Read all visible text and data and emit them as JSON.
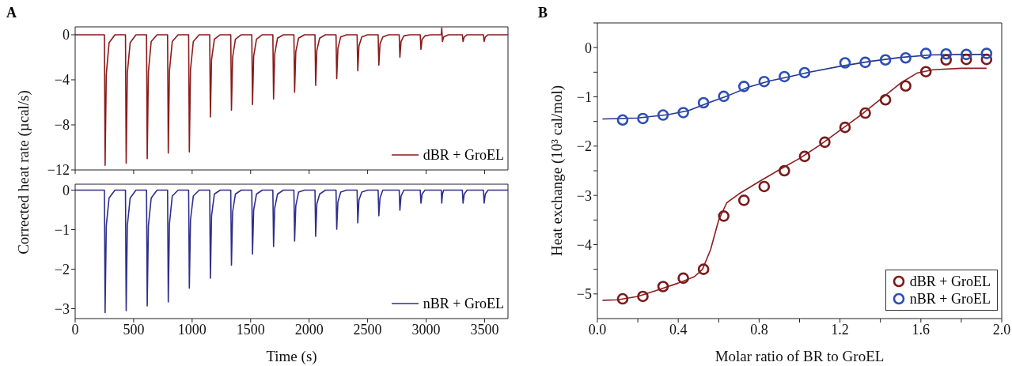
{
  "chart_data": [
    {
      "type": "line",
      "annotations": [
        "A"
      ],
      "ylabel": "Corrected heat rate (µcal/s)",
      "xlim": [
        0,
        3700
      ],
      "xticks": [
        0,
        500,
        1000,
        1500,
        2000,
        2500,
        3000,
        3500
      ],
      "ylim": [
        -12,
        0.7
      ],
      "yticks": [
        0,
        -4,
        -8,
        -12
      ],
      "tick_labels": "y",
      "legend": "bottom right",
      "marker": "none",
      "x": [
        0,
        250,
        256,
        266,
        290,
        340,
        430,
        436,
        446,
        470,
        520,
        610,
        616,
        626,
        650,
        700,
        790,
        796,
        806,
        830,
        880,
        970,
        976,
        986,
        1010,
        1060,
        1150,
        1156,
        1166,
        1190,
        1240,
        1330,
        1336,
        1346,
        1370,
        1420,
        1510,
        1516,
        1526,
        1550,
        1600,
        1690,
        1696,
        1706,
        1730,
        1780,
        1870,
        1876,
        1886,
        1910,
        1960,
        2050,
        2056,
        2066,
        2090,
        2140,
        2230,
        2236,
        2246,
        2270,
        2320,
        2410,
        2416,
        2426,
        2450,
        2500,
        2590,
        2596,
        2606,
        2630,
        2680,
        2770,
        2776,
        2786,
        2810,
        2860,
        2950,
        2956,
        2966,
        2990,
        3040,
        3130,
        3134,
        3140,
        3150,
        3190,
        3310,
        3316,
        3326,
        3350,
        3400,
        3490,
        3496,
        3506,
        3530,
        3580,
        3700
      ],
      "series": [
        {
          "name": "dBR + GroEL",
          "color": "#8b1a1a",
          "values": [
            0,
            0,
            -11.6,
            -3.5,
            -0.7,
            0,
            0,
            -11.4,
            -3.4,
            -0.7,
            0,
            0,
            -11,
            -3.3,
            -0.6,
            0,
            0,
            -10.5,
            -3.2,
            -0.6,
            0,
            0,
            -10.4,
            -3.1,
            -0.6,
            0,
            0,
            -7.3,
            -2.2,
            -0.4,
            0,
            0,
            -6.7,
            -2,
            -0.4,
            0,
            0,
            -6.2,
            -1.9,
            -0.4,
            0,
            0,
            -5.7,
            -1.7,
            -0.3,
            0,
            0,
            -5.1,
            -1.5,
            -0.3,
            0,
            0,
            -4.5,
            -1.4,
            -0.3,
            0,
            0,
            -3.9,
            -1.2,
            -0.2,
            0,
            0,
            -3.2,
            -1,
            -0.2,
            0,
            0,
            -2.7,
            -0.8,
            -0.2,
            0,
            0,
            -2,
            -0.6,
            -0.1,
            0,
            0,
            -1.3,
            -0.4,
            -0.1,
            0,
            0,
            0.6,
            -0.6,
            -0.2,
            0,
            0,
            -0.6,
            -0.2,
            0,
            0,
            0,
            -0.6,
            -0.2,
            0,
            0,
            0
          ]
        }
      ]
    },
    {
      "type": "line",
      "xlabel": "Time (s)",
      "xlim": [
        0,
        3700
      ],
      "xticks": [
        0,
        500,
        1000,
        1500,
        2000,
        2500,
        3000,
        3500
      ],
      "ylim": [
        -3.25,
        0.15
      ],
      "yticks": [
        0,
        -1,
        -2,
        -3
      ],
      "legend": "bottom right",
      "marker": "none",
      "x": [
        0,
        250,
        256,
        266,
        290,
        340,
        430,
        436,
        446,
        470,
        520,
        610,
        616,
        626,
        650,
        700,
        790,
        796,
        806,
        830,
        880,
        970,
        976,
        986,
        1010,
        1060,
        1150,
        1156,
        1166,
        1190,
        1240,
        1330,
        1336,
        1346,
        1370,
        1420,
        1510,
        1516,
        1526,
        1550,
        1600,
        1690,
        1696,
        1706,
        1730,
        1780,
        1870,
        1876,
        1886,
        1910,
        1960,
        2050,
        2056,
        2066,
        2090,
        2140,
        2230,
        2236,
        2246,
        2270,
        2320,
        2410,
        2416,
        2426,
        2450,
        2500,
        2590,
        2596,
        2606,
        2630,
        2680,
        2770,
        2776,
        2786,
        2810,
        2860,
        2950,
        2956,
        2966,
        2990,
        3040,
        3130,
        3134,
        3140,
        3150,
        3190,
        3310,
        3316,
        3326,
        3350,
        3400,
        3490,
        3496,
        3506,
        3530,
        3580,
        3700
      ],
      "series": [
        {
          "name": "nBR + GroEL",
          "color": "#2e2e8c",
          "values": [
            0,
            0,
            -3.1,
            -0.9,
            -0.2,
            0,
            0,
            -3.05,
            -0.9,
            -0.2,
            0,
            0,
            -2.93,
            -0.9,
            -0.2,
            0,
            0,
            -2.83,
            -0.85,
            -0.15,
            0,
            0,
            -2.48,
            -0.75,
            -0.15,
            0,
            0,
            -2.23,
            -0.65,
            -0.1,
            0,
            0,
            -1.9,
            -0.55,
            -0.1,
            0,
            0,
            -1.62,
            -0.5,
            -0.1,
            0,
            0,
            -1.43,
            -0.45,
            -0.1,
            0,
            0,
            -1.29,
            -0.4,
            -0.05,
            0,
            0,
            -1.17,
            -0.35,
            -0.1,
            0,
            0,
            -0.99,
            -0.3,
            -0.05,
            0,
            0,
            -0.83,
            -0.25,
            -0.05,
            0,
            0,
            -0.65,
            -0.2,
            0,
            0,
            0,
            -0.51,
            -0.15,
            0,
            0,
            0,
            -0.33,
            -0.1,
            0,
            0,
            0,
            -0.33,
            -0.1,
            0,
            0,
            0,
            -0.33,
            -0.1,
            0,
            0,
            0,
            -0.33,
            -0.1,
            0,
            0,
            0
          ]
        }
      ]
    },
    {
      "type": "scatter",
      "annotations": [
        "B"
      ],
      "xlabel": "Molar ratio of BR to GroEL",
      "ylabel": "Heat exchange (10³ cal/mol)",
      "xlim": [
        0,
        2.0
      ],
      "xticks": [
        {
          "value": 0,
          "label": "0.0"
        },
        {
          "value": 0.2,
          "label": null
        },
        {
          "value": 0.4,
          "label": "0.4"
        },
        {
          "value": 0.6,
          "label": null
        },
        {
          "value": 0.8,
          "label": "0.8"
        },
        {
          "value": 1.0,
          "label": null
        },
        {
          "value": 1.2,
          "label": "1.2"
        },
        {
          "value": 1.4,
          "label": null
        },
        {
          "value": 1.6,
          "label": "1.6"
        },
        {
          "value": 1.8,
          "label": null
        },
        {
          "value": 2.0,
          "label": "2.0"
        }
      ],
      "ylim": [
        -5.5,
        0.5
      ],
      "yticks": [
        {
          "value": 0.5,
          "label": null
        },
        0,
        {
          "value": -0.5,
          "label": null
        },
        -1,
        {
          "value": -1.5,
          "label": null
        },
        -2,
        {
          "value": -2.5,
          "label": null
        },
        -3,
        {
          "value": -3.5,
          "label": null
        },
        -4,
        {
          "value": -4.5,
          "label": null
        },
        -5
      ],
      "legend": "bottom right",
      "marker": "circle",
      "series": [
        {
          "type": "line",
          "marker": "none",
          "color": "#8b2020",
          "x": [
            0.025,
            0.1,
            0.2,
            0.3,
            0.4,
            0.48,
            0.52,
            0.56,
            0.6,
            0.64,
            0.7,
            0.8,
            0.9,
            1.0,
            1.1,
            1.2,
            1.3,
            1.4,
            1.5,
            1.58,
            1.66,
            1.8,
            1.925
          ],
          "values": [
            -5.13,
            -5.12,
            -5.05,
            -4.92,
            -4.78,
            -4.65,
            -4.5,
            -4.1,
            -3.5,
            -3.15,
            -2.97,
            -2.72,
            -2.48,
            -2.25,
            -1.98,
            -1.68,
            -1.38,
            -1.05,
            -0.72,
            -0.52,
            -0.45,
            -0.42,
            -0.42
          ]
        },
        {
          "type": "line",
          "marker": "none",
          "color": "#283593",
          "x": [
            0.025,
            0.2,
            0.35,
            0.45,
            0.55,
            0.65,
            0.75,
            0.85,
            0.95,
            1.05,
            1.2,
            1.35,
            1.5,
            1.65,
            1.8,
            1.925
          ],
          "values": [
            -1.45,
            -1.43,
            -1.36,
            -1.28,
            -1.12,
            -0.97,
            -0.8,
            -0.68,
            -0.59,
            -0.5,
            -0.38,
            -0.28,
            -0.2,
            -0.15,
            -0.14,
            -0.14
          ]
        },
        {
          "name": "dBR + GroEL",
          "color": "#7b1a1a",
          "x": [
            0.125,
            0.225,
            0.325,
            0.425,
            0.525,
            0.625,
            0.725,
            0.825,
            0.925,
            1.025,
            1.125,
            1.225,
            1.325,
            1.425,
            1.525,
            1.625,
            1.725,
            1.825,
            1.925
          ],
          "values": [
            -5.1,
            -5.05,
            -4.85,
            -4.68,
            -4.5,
            -3.42,
            -3.1,
            -2.82,
            -2.5,
            -2.21,
            -1.92,
            -1.62,
            -1.33,
            -1.06,
            -0.78,
            -0.49,
            -0.25,
            -0.24,
            -0.24
          ]
        },
        {
          "name": "nBR + GroEL",
          "color": "#2c4fb4",
          "x": [
            0.125,
            0.225,
            0.325,
            0.425,
            0.525,
            0.625,
            0.725,
            0.825,
            0.925,
            1.025,
            1.225,
            1.325,
            1.425,
            1.525,
            1.625,
            1.725,
            1.825,
            1.925
          ],
          "values": [
            -1.47,
            -1.44,
            -1.37,
            -1.32,
            -1.12,
            -0.99,
            -0.79,
            -0.69,
            -0.59,
            -0.51,
            -0.31,
            -0.3,
            -0.25,
            -0.21,
            -0.12,
            -0.13,
            -0.14,
            -0.12
          ]
        }
      ]
    }
  ]
}
